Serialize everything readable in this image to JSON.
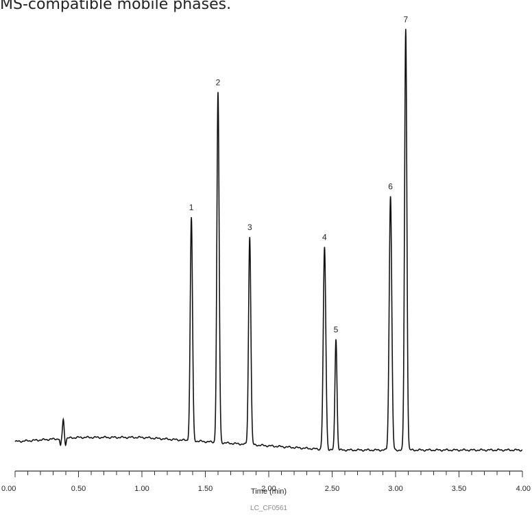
{
  "caption": "MS-compatible mobile phases.",
  "chart_data": {
    "type": "line",
    "xlabel": "Time (min)",
    "ylabel": "",
    "xlim": [
      0,
      4.0
    ],
    "x_ticks": [
      0,
      0.5,
      1.0,
      1.5,
      2.0,
      2.5,
      3.0,
      3.5,
      4.0
    ],
    "x_tick_labels": [
      "0.00",
      "0.50",
      "1.00",
      "1.50",
      "2.00",
      "2.50",
      "3.00",
      "3.50",
      "4.00"
    ],
    "minor_tick_step": 0.1,
    "grid": false,
    "show_y_axis": false,
    "code_label": "LC_CF0561",
    "baseline": [
      [
        0.0,
        0.0
      ],
      [
        0.5,
        0.01
      ],
      [
        1.0,
        0.01
      ],
      [
        1.5,
        0.0
      ],
      [
        2.0,
        -0.01
      ],
      [
        2.5,
        -0.02
      ],
      [
        3.0,
        -0.02
      ],
      [
        3.5,
        -0.02
      ],
      [
        4.0,
        -0.02
      ]
    ],
    "disturbance": {
      "time": 0.38,
      "height": 0.045,
      "dip": -0.018,
      "width": 0.006
    },
    "peaks": [
      {
        "label": "1",
        "time": 1.39,
        "height": 0.53,
        "width": 0.009
      },
      {
        "label": "2",
        "time": 1.6,
        "height": 0.83,
        "width": 0.009
      },
      {
        "label": "3",
        "time": 1.85,
        "height": 0.495,
        "width": 0.009
      },
      {
        "label": "4",
        "time": 2.44,
        "height": 0.48,
        "width": 0.01
      },
      {
        "label": "5",
        "time": 2.53,
        "height": 0.265,
        "width": 0.008
      },
      {
        "label": "6",
        "time": 2.96,
        "height": 0.605,
        "width": 0.01
      },
      {
        "label": "7",
        "time": 3.08,
        "height": 1.0,
        "width": 0.009
      }
    ]
  }
}
